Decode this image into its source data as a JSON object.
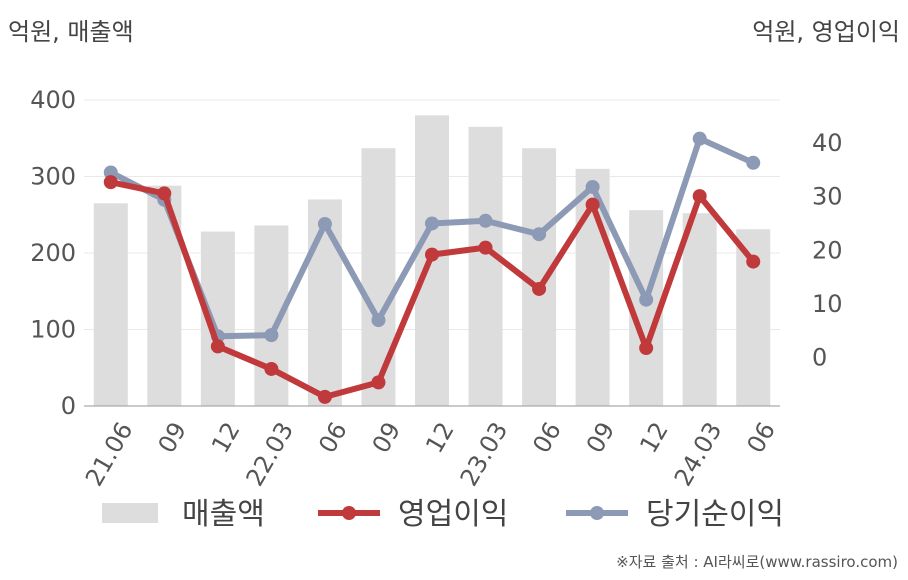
{
  "unit_left": "억원, 매출액",
  "unit_right": "억원, 영업이익",
  "source": "※자료 출처 : AI라씨로(www.rassiro.com)",
  "chart_data": {
    "type": "bar+line",
    "categories": [
      "21.06",
      "09",
      "12",
      "22.03",
      "06",
      "09",
      "12",
      "23.03",
      "06",
      "09",
      "12",
      "24.03",
      "06"
    ],
    "left_axis": {
      "ylim": [
        0,
        400
      ],
      "ticks": [
        0,
        100,
        200,
        300,
        400
      ],
      "label": "억원, 매출액"
    },
    "right_axis": {
      "ylim": [
        -9,
        48
      ],
      "ticks": [
        0,
        10,
        20,
        30,
        40
      ],
      "label": "억원, 영업이익"
    },
    "grid": true,
    "legend_position": "bottom",
    "series": [
      {
        "name": "매출액",
        "type": "bar",
        "axis": "left",
        "color": "#dddddd",
        "values": [
          265,
          288,
          228,
          236,
          270,
          337,
          380,
          365,
          337,
          310,
          256,
          252,
          231
        ]
      },
      {
        "name": "영업이익",
        "type": "line",
        "axis": "right",
        "color": "#c0393b",
        "values": [
          32.7,
          30.6,
          2.1,
          -2.1,
          -7.3,
          -4.6,
          19.2,
          20.5,
          12.8,
          28.5,
          1.8,
          30.1,
          17.9
        ]
      },
      {
        "name": "당기순이익",
        "type": "line",
        "axis": "right",
        "color": "#8d9ab5",
        "values": [
          34.5,
          29.4,
          4.0,
          4.2,
          24.9,
          7.0,
          25.0,
          25.5,
          23.0,
          31.8,
          10.8,
          40.8,
          36.3
        ]
      }
    ]
  }
}
